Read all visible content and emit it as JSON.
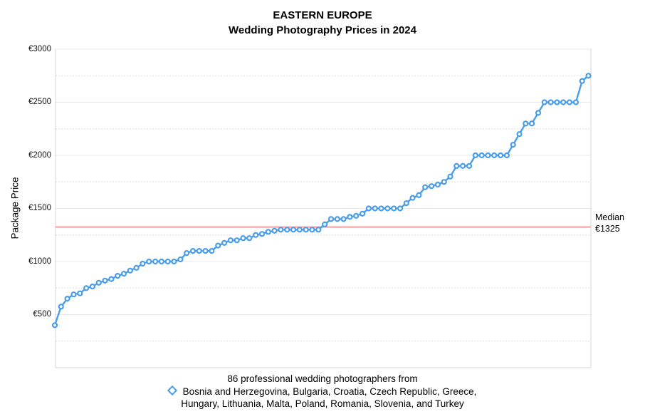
{
  "title": {
    "line1": "EASTERN EUROPE",
    "line2": "Wedding Photography Prices in 2024"
  },
  "y_axis": {
    "label": "Package Price",
    "tick_values": [
      500,
      1000,
      1500,
      2000,
      2500,
      3000
    ],
    "tick_labels": [
      "€500",
      "€1000",
      "€1500",
      "€2000",
      "€2500",
      "€3000"
    ]
  },
  "median": {
    "value": 1325,
    "label_line1": "Median",
    "label_line2": "€1325"
  },
  "legend": {
    "line1": "86 professional wedding photographers from",
    "line2": "Bosnia and Herzegovina, Bulgaria, Croatia, Czech Republic, Greece,",
    "line3": "Hungary, Lithuania, Malta, Poland, Romania, Slovenia, and Turkey",
    "marker_icon": "diamond-icon"
  },
  "colors": {
    "series": "#4a9de8",
    "marker_fill": "#ffffff",
    "median_line": "#f28b8b",
    "grid_major": "#e8e8e8",
    "grid_minor": "#dedede",
    "axis_border": "#d6d6d6",
    "text": "#000000",
    "background": "#ffffff"
  },
  "chart_data": {
    "type": "line",
    "title": "EASTERN EUROPE — Wedding Photography Prices in 2024",
    "ylabel": "Package Price",
    "ylim": [
      0,
      3000
    ],
    "y_major_step": 500,
    "y_minor_step": 250,
    "grid": true,
    "legend_position": "bottom",
    "marker": "open-circle",
    "n_points": 86,
    "median_value": 1325,
    "values": [
      400,
      575,
      650,
      690,
      700,
      750,
      765,
      800,
      820,
      835,
      865,
      885,
      915,
      940,
      980,
      1000,
      1000,
      1000,
      1000,
      1000,
      1020,
      1080,
      1100,
      1100,
      1100,
      1100,
      1150,
      1175,
      1200,
      1200,
      1220,
      1220,
      1250,
      1260,
      1280,
      1290,
      1300,
      1300,
      1300,
      1300,
      1300,
      1300,
      1300,
      1350,
      1400,
      1400,
      1400,
      1420,
      1430,
      1450,
      1500,
      1500,
      1500,
      1500,
      1500,
      1500,
      1550,
      1600,
      1625,
      1700,
      1710,
      1725,
      1750,
      1800,
      1900,
      1900,
      1900,
      2000,
      2000,
      2000,
      2000,
      2000,
      2000,
      2100,
      2200,
      2300,
      2300,
      2400,
      2500,
      2500,
      2500,
      2500,
      2500,
      2500,
      2700,
      2750
    ]
  }
}
